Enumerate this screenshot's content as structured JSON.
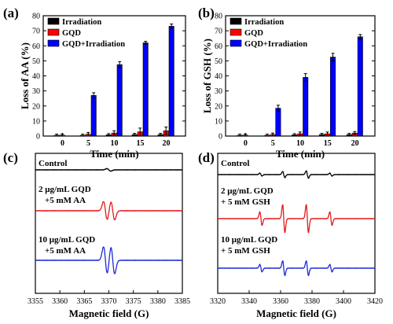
{
  "colors": {
    "irradiation": "#000000",
    "gqd": "#ff0000",
    "gqd_irradiation": "#0000ff",
    "control": "#000000",
    "spectrum_red": "#e31a1c",
    "spectrum_blue": "#1c2ad8"
  },
  "chart_data": [
    {
      "panel": "(a)",
      "type": "bar",
      "xlabel": "Time (min)",
      "ylabel": "Loss of AA (%)",
      "categories": [
        "0",
        "5",
        "10",
        "15",
        "20"
      ],
      "yticks": [
        "0",
        "10",
        "20",
        "30",
        "40",
        "50",
        "60",
        "70",
        "80"
      ],
      "ylim": [
        0,
        80
      ],
      "legend_position": "top-left",
      "series": [
        {
          "name": "Irradiation",
          "color": "#000000",
          "values": [
            0.5,
            0.5,
            0.8,
            1.0,
            1.0
          ],
          "errors": [
            0.8,
            0.8,
            0.8,
            0.8,
            0.8
          ]
        },
        {
          "name": "GQD",
          "color": "#ff0000",
          "values": [
            0.6,
            1.2,
            2.0,
            2.8,
            3.5
          ],
          "errors": [
            0.8,
            1.2,
            1.5,
            2.5,
            2.5
          ]
        },
        {
          "name": "GQD+Irradiation",
          "color": "#0000ff",
          "values": [
            0,
            27,
            47.5,
            62,
            73
          ],
          "errors": [
            0,
            1.8,
            2.0,
            1.0,
            1.5
          ]
        }
      ]
    },
    {
      "panel": "(b)",
      "type": "bar",
      "xlabel": "Time (min)",
      "ylabel": "Loss of GSH (%)",
      "categories": [
        "0",
        "5",
        "10",
        "15",
        "20"
      ],
      "yticks": [
        "0",
        "10",
        "20",
        "30",
        "40",
        "50",
        "60",
        "70",
        "80"
      ],
      "ylim": [
        0,
        80
      ],
      "legend_position": "top-left",
      "series": [
        {
          "name": "Irradiation",
          "color": "#000000",
          "values": [
            0.5,
            0.5,
            0.8,
            1.0,
            1.0
          ],
          "errors": [
            0.8,
            0.8,
            0.8,
            0.8,
            0.8
          ]
        },
        {
          "name": "GQD",
          "color": "#ff0000",
          "values": [
            0.6,
            1.0,
            1.5,
            1.5,
            2.0
          ],
          "errors": [
            0.8,
            1.0,
            1.2,
            1.2,
            1.0
          ]
        },
        {
          "name": "GQD+Irradiation",
          "color": "#0000ff",
          "values": [
            0,
            18.5,
            39,
            52.5,
            66
          ],
          "errors": [
            0,
            2.0,
            2.5,
            2.5,
            1.5
          ]
        }
      ]
    },
    {
      "panel": "(c)",
      "type": "line",
      "xlabel": "Magnetic field (G)",
      "ylabel": "",
      "xlim": [
        3355,
        3385
      ],
      "xticks": [
        "3355",
        "3360",
        "3365",
        "3370",
        "3375",
        "3380",
        "3385"
      ],
      "series": [
        {
          "label_lines": [
            "Control"
          ],
          "color": "#000000",
          "lines": [
            {
              "center": 3370,
              "amp": 0.1
            }
          ]
        },
        {
          "label_lines": [
            "2 μg/mL GQD",
            "+5 mM AA"
          ],
          "color": "#e31a1c",
          "lines": [
            {
              "center": 3369.3,
              "amp": 0.75
            },
            {
              "center": 3370.8,
              "amp": 0.75
            }
          ]
        },
        {
          "label_lines": [
            "10 μg/mL GQD",
            "+5 mM AA"
          ],
          "color": "#1c2ad8",
          "lines": [
            {
              "center": 3369.3,
              "amp": 1.1
            },
            {
              "center": 3370.8,
              "amp": 1.1
            }
          ]
        }
      ]
    },
    {
      "panel": "(d)",
      "type": "line",
      "xlabel": "Magnetic field (G)",
      "ylabel": "",
      "xlim": [
        3320,
        3420
      ],
      "xticks": [
        "3320",
        "3340",
        "3360",
        "3380",
        "3400",
        "3420"
      ],
      "series": [
        {
          "label_lines": [
            "Control"
          ],
          "color": "#000000",
          "lines": [
            {
              "center": 3347.5,
              "amp": 0.12
            },
            {
              "center": 3362,
              "amp": 0.25
            },
            {
              "center": 3377,
              "amp": 0.3
            },
            {
              "center": 3392,
              "amp": 0.12
            }
          ]
        },
        {
          "label_lines": [
            "2 μg/mL GQD",
            "+ 5 mM GSH"
          ],
          "color": "#e31a1c",
          "lines": [
            {
              "center": 3347.5,
              "amp": 0.55
            },
            {
              "center": 3362,
              "amp": 1.15
            },
            {
              "center": 3377,
              "amp": 1.15
            },
            {
              "center": 3392,
              "amp": 0.55
            }
          ]
        },
        {
          "label_lines": [
            "10 μg/mL GQD",
            "+ 5 mM GSH"
          ],
          "color": "#1c2ad8",
          "lines": [
            {
              "center": 3347.5,
              "amp": 0.3
            },
            {
              "center": 3362,
              "amp": 0.6
            },
            {
              "center": 3377,
              "amp": 0.6
            },
            {
              "center": 3392,
              "amp": 0.3
            }
          ]
        }
      ]
    }
  ]
}
